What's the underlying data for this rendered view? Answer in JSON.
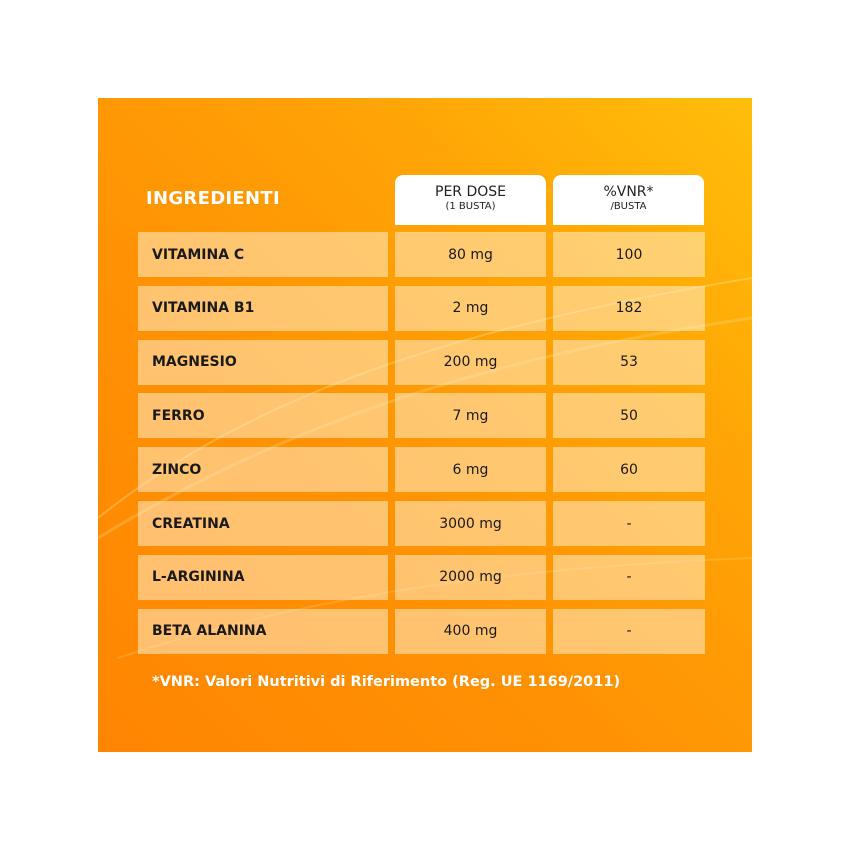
{
  "title": "INGREDIENTI",
  "headers": [
    {
      "line1": "PER DOSE",
      "line2": "(1 BUSTA)"
    },
    {
      "line1": "%VNR*",
      "line2": "/BUSTA"
    }
  ],
  "rows": [
    {
      "name": "VITAMINA C",
      "dose": "80 mg",
      "vnr": "100"
    },
    {
      "name": "VITAMINA B1",
      "dose": "2 mg",
      "vnr": "182"
    },
    {
      "name": "MAGNESIO",
      "dose": "200 mg",
      "vnr": "53"
    },
    {
      "name": "FERRO",
      "dose": "7 mg",
      "vnr": "50"
    },
    {
      "name": "ZINCO",
      "dose": "6 mg",
      "vnr": "60"
    },
    {
      "name": "CREATINA",
      "dose": "3000 mg",
      "vnr": "-"
    },
    {
      "name": "L-ARGININA",
      "dose": "2000 mg",
      "vnr": "-"
    },
    {
      "name": "BETA ALANINA",
      "dose": "400 mg",
      "vnr": "-"
    }
  ],
  "footnote": "*VNR: Valori Nutritivi di Riferimento (Reg. UE 1169/2011)",
  "colors": {
    "gradient_top": "#ffbe0a",
    "gradient_bottom": "#ff8502",
    "header_bg": "#ffffff"
  }
}
